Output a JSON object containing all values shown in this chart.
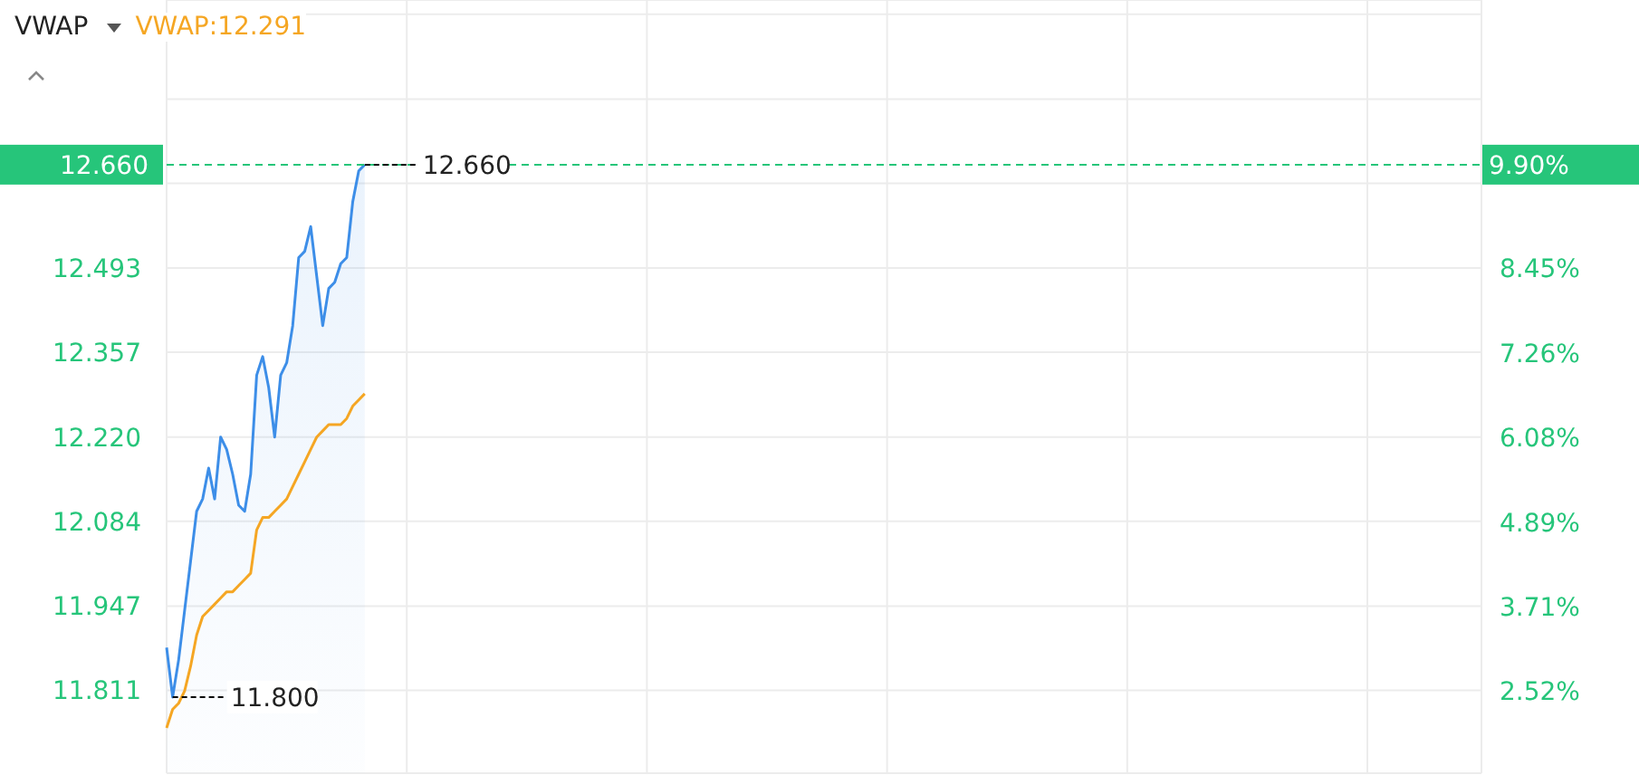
{
  "chart_data": {
    "type": "line",
    "title": "VWAP",
    "categories": [
      null,
      null,
      null,
      null,
      null,
      null,
      null,
      null,
      null,
      null,
      null,
      null,
      null,
      null,
      null,
      null,
      null,
      null,
      null,
      null,
      null,
      null,
      null,
      null,
      null,
      null,
      null,
      null,
      null,
      null,
      null,
      null,
      null,
      null,
      null,
      null,
      null,
      null,
      null,
      null,
      null,
      null,
      null,
      null,
      null,
      null,
      null,
      null,
      null,
      null,
      null,
      null,
      null,
      null,
      null,
      null,
      null,
      null,
      null,
      null,
      null,
      null,
      null,
      null,
      null,
      null,
      null,
      null,
      null,
      null,
      null,
      null,
      null,
      null,
      null,
      null,
      null,
      null,
      null,
      null,
      null,
      null,
      null,
      null,
      null,
      null,
      null,
      null,
      null,
      null,
      null,
      null,
      null,
      null,
      null,
      null,
      null,
      null,
      null,
      null,
      null,
      null,
      null,
      null,
      null,
      null,
      null,
      null,
      null,
      null,
      null,
      null,
      null,
      null,
      null,
      null,
      null,
      null,
      null,
      null,
      null,
      null,
      null,
      null,
      null,
      null,
      null,
      null,
      null,
      null,
      null,
      null,
      null,
      null,
      null,
      null,
      null,
      null,
      null,
      null,
      null,
      null,
      null,
      null,
      null,
      null,
      null,
      null,
      null,
      null,
      null,
      null,
      null,
      null,
      null,
      null,
      null,
      null,
      null,
      null,
      null,
      null,
      null,
      null,
      null,
      null,
      null,
      null,
      null,
      null,
      null,
      null,
      null,
      null,
      null,
      null,
      null,
      null,
      null,
      null,
      null,
      null,
      null,
      null,
      null,
      null,
      null,
      null,
      null,
      null,
      null,
      null,
      null,
      null,
      null,
      null,
      null,
      null,
      null,
      null,
      null,
      null,
      null,
      null,
      null,
      null,
      null,
      null,
      null,
      null,
      null,
      null,
      null,
      null,
      null,
      null,
      null,
      null,
      null,
      null
    ],
    "ylim": [
      11.677,
      12.926
    ],
    "yticks": [
      {
        "value": 11.811,
        "label": "11.811"
      },
      {
        "value": 11.947,
        "label": "11.947"
      },
      {
        "value": 12.084,
        "label": "12.084"
      },
      {
        "value": 12.22,
        "label": "12.220"
      },
      {
        "value": 12.357,
        "label": "12.357"
      },
      {
        "value": 12.493,
        "label": "12.493"
      },
      {
        "value": 12.63,
        "label": null
      },
      {
        "value": 12.766,
        "label": null
      },
      {
        "value": 12.903,
        "label": null
      }
    ],
    "y2lim": [
      1.37,
      12.21
    ],
    "y2ticks": [
      {
        "value": 2.52,
        "label": "2.52%"
      },
      {
        "value": 3.71,
        "label": "3.71%"
      },
      {
        "value": 4.89,
        "label": "4.89%"
      },
      {
        "value": 6.08,
        "label": "6.08%"
      },
      {
        "value": 7.26,
        "label": "7.26%"
      },
      {
        "value": 8.45,
        "label": "8.45%"
      },
      {
        "value": 9.63,
        "label": null
      }
    ],
    "series": [
      {
        "type": "area",
        "color": "#3d8ee8",
        "values": [
          11.88,
          11.8,
          11.86,
          11.94,
          12.02,
          12.1,
          12.12,
          12.17,
          12.12,
          12.22,
          12.2,
          12.16,
          12.11,
          12.1,
          12.16,
          12.32,
          12.35,
          12.3,
          12.22,
          12.32,
          12.34,
          12.4,
          12.51,
          12.52,
          12.56,
          12.48,
          12.4,
          12.46,
          12.47,
          12.5,
          12.51,
          12.6,
          12.65,
          12.66,
          null,
          null,
          null,
          null,
          null,
          null,
          null,
          null,
          null,
          null,
          null,
          null,
          null,
          null,
          null,
          null,
          null,
          null,
          null,
          null,
          null,
          null,
          null,
          null,
          null,
          null,
          null,
          null,
          null,
          null,
          null,
          null,
          null,
          null,
          null,
          null,
          null,
          null,
          null,
          null,
          null,
          null,
          null,
          null,
          null,
          null,
          null,
          null,
          null,
          null,
          null,
          null,
          null,
          null,
          null,
          null,
          null,
          null,
          null,
          null,
          null,
          null,
          null,
          null,
          null,
          null,
          null,
          null,
          null,
          null,
          null,
          null,
          null,
          null,
          null,
          null,
          null,
          null,
          null,
          null,
          null,
          null,
          null,
          null,
          null,
          null,
          null,
          null,
          null,
          null,
          null,
          null,
          null,
          null,
          null,
          null,
          null,
          null,
          null,
          null,
          null,
          null,
          null,
          null,
          null,
          null,
          null,
          null,
          null,
          null,
          null,
          null,
          null,
          null,
          null,
          null,
          null,
          null,
          null,
          null,
          null,
          null,
          null,
          null,
          null,
          null,
          null,
          null,
          null,
          null,
          null,
          null,
          null,
          null,
          null,
          null,
          null,
          null,
          null,
          null,
          null,
          null,
          null,
          null,
          null,
          null,
          null,
          null,
          null,
          null,
          null,
          null,
          null,
          null,
          null,
          null,
          null,
          null,
          null,
          null,
          null,
          null,
          null,
          null,
          null,
          null,
          null,
          null,
          null,
          null,
          null,
          null,
          null,
          null,
          null,
          null,
          null,
          null,
          null,
          null,
          null,
          null,
          null,
          null,
          null,
          null
        ]
      },
      {
        "name": "VWAP:12.291",
        "color": "#f5a623",
        "values": [
          11.75,
          11.78,
          11.79,
          11.81,
          11.85,
          11.9,
          11.93,
          11.94,
          11.95,
          11.96,
          11.97,
          11.97,
          11.98,
          11.99,
          12.0,
          12.07,
          12.09,
          12.09,
          12.1,
          12.11,
          12.12,
          12.14,
          12.16,
          12.18,
          12.2,
          12.22,
          12.23,
          12.24,
          12.24,
          12.24,
          12.25,
          12.27,
          12.28,
          12.29,
          null,
          null,
          null,
          null,
          null,
          null,
          null,
          null,
          null,
          null,
          null,
          null,
          null,
          null,
          null,
          null,
          null,
          null,
          null,
          null,
          null,
          null,
          null,
          null,
          null,
          null,
          null,
          null,
          null,
          null,
          null,
          null,
          null,
          null,
          null,
          null,
          null,
          null,
          null,
          null,
          null,
          null,
          null,
          null,
          null,
          null,
          null,
          null,
          null,
          null,
          null,
          null,
          null,
          null,
          null,
          null,
          null,
          null,
          null,
          null,
          null,
          null,
          null,
          null,
          null,
          null,
          null,
          null,
          null,
          null,
          null,
          null,
          null,
          null,
          null,
          null,
          null,
          null,
          null,
          null,
          null,
          null,
          null,
          null,
          null,
          null,
          null,
          null,
          null,
          null,
          null,
          null,
          null,
          null,
          null,
          null,
          null,
          null,
          null,
          null,
          null,
          null,
          null,
          null,
          null,
          null,
          null,
          null,
          null,
          null,
          null,
          null,
          null,
          null,
          null,
          null,
          null,
          null,
          null,
          null,
          null,
          null,
          null,
          null,
          null,
          null,
          null,
          null,
          null,
          null,
          null,
          null,
          null,
          null,
          null,
          null,
          null,
          null,
          null,
          null,
          null,
          null,
          null,
          null,
          null,
          null,
          null,
          null,
          null,
          null,
          null,
          null,
          null,
          null,
          null,
          null,
          null,
          null,
          null,
          null,
          null,
          null,
          null,
          null,
          null,
          null,
          null,
          null,
          null,
          null,
          null,
          null,
          null,
          null,
          null,
          null,
          null,
          null,
          null,
          null,
          null,
          null,
          null,
          null,
          null,
          null
        ]
      }
    ],
    "ref_lines": [
      {
        "axis": "y",
        "value": 12.66,
        "label": "12.660",
        "color": "#26c57a",
        "line_style": "dashed"
      }
    ],
    "annotations": [
      {
        "text": "12.660",
        "y": 12.66
      },
      "11.800",
      "9.90%"
    ],
    "grid": true,
    "legend": "top left",
    "tick_labels": "y",
    "marker": "none",
    "line_style": "solid"
  }
}
